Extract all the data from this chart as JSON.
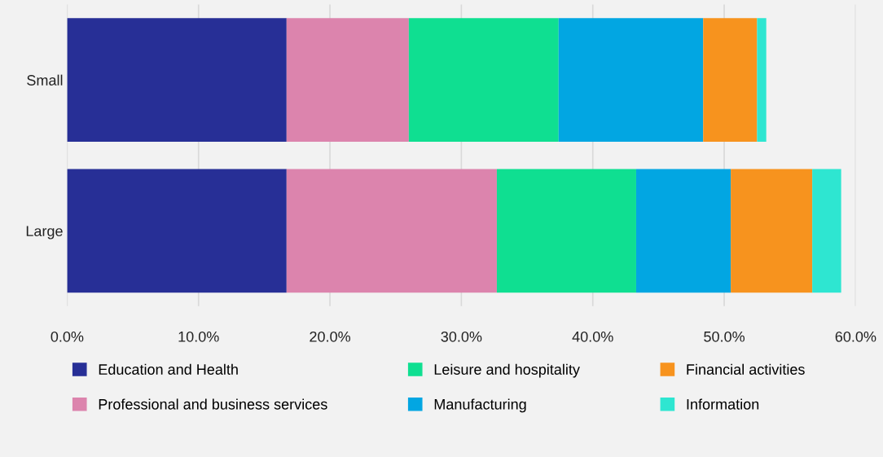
{
  "chart_data": {
    "type": "bar",
    "orientation": "horizontal",
    "stacked": true,
    "categories": [
      "Small",
      "Large"
    ],
    "series": [
      {
        "name": "Education and Health",
        "color": "#272f96",
        "values": [
          16.7,
          16.7
        ]
      },
      {
        "name": "Professional and business services",
        "color": "#dc84ad",
        "values": [
          9.3,
          16.0
        ]
      },
      {
        "name": "Leisure and hospitality",
        "color": "#0fdf91",
        "values": [
          11.4,
          10.6
        ]
      },
      {
        "name": "Manufacturing",
        "color": "#02a6e2",
        "values": [
          11.0,
          7.2
        ]
      },
      {
        "name": "Financial activities",
        "color": "#f7931e",
        "values": [
          4.1,
          6.2
        ]
      },
      {
        "name": "Information",
        "color": "#2ee6d1",
        "values": [
          0.7,
          2.2
        ]
      }
    ],
    "xlim": [
      0,
      60
    ],
    "xticks": [
      {
        "value": 0,
        "label": "0.0%"
      },
      {
        "value": 10,
        "label": "10.0%"
      },
      {
        "value": 20,
        "label": "20.0%"
      },
      {
        "value": 30,
        "label": "30.0%"
      },
      {
        "value": 40,
        "label": "40.0%"
      },
      {
        "value": 50,
        "label": "50.0%"
      },
      {
        "value": 60,
        "label": "60.0%"
      }
    ],
    "grid": "x",
    "legend": "bottom"
  }
}
